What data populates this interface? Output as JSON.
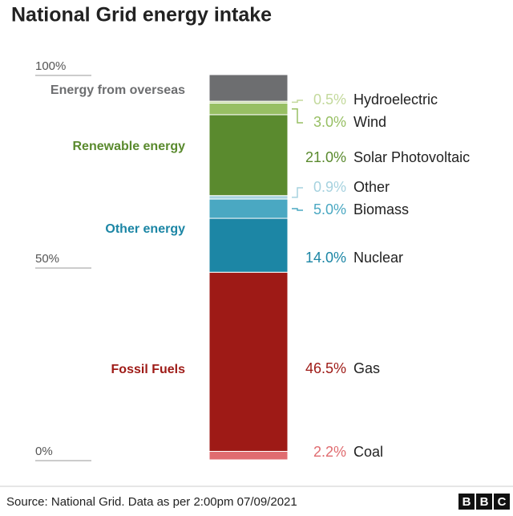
{
  "chart_data": {
    "type": "stacked-bar",
    "title": "National Grid energy intake",
    "source": "Source: National Grid. Data as per 2:00pm 07/09/2021",
    "logo": "BBC",
    "ylim": [
      0,
      100
    ],
    "yticks": [
      {
        "value": 0,
        "label": "0%"
      },
      {
        "value": 50,
        "label": "50%"
      },
      {
        "value": 100,
        "label": "100%"
      }
    ],
    "groups": [
      {
        "name": "Fossil Fuels",
        "color": "#9e1a16",
        "series": [
          {
            "name": "Coal",
            "color": "#e06c70",
            "values": [
              2.2
            ],
            "value_labels": [
              "2.2%"
            ]
          },
          {
            "name": "Gas",
            "color": "#9e1a16",
            "values": [
              46.5
            ],
            "value_labels": [
              "46.5%"
            ]
          }
        ]
      },
      {
        "name": "Other energy",
        "color": "#1c86a5",
        "series": [
          {
            "name": "Nuclear",
            "color": "#1c86a5",
            "values": [
              14.0
            ],
            "value_labels": [
              "14.0%"
            ]
          },
          {
            "name": "Biomass",
            "color": "#4aa8c2",
            "values": [
              5.0
            ],
            "value_labels": [
              "5.0%"
            ]
          },
          {
            "name": "Other",
            "color": "#a6d2df",
            "values": [
              0.9
            ],
            "value_labels": [
              "0.9%"
            ]
          }
        ]
      },
      {
        "name": "Renewable energy",
        "color": "#5a8a2e",
        "series": [
          {
            "name": "Solar Photovoltaic",
            "color": "#5a8a2e",
            "values": [
              21.0
            ],
            "value_labels": [
              "21.0%"
            ]
          },
          {
            "name": "Wind",
            "color": "#97bf63",
            "values": [
              3.0
            ],
            "value_labels": [
              "3.0%"
            ]
          },
          {
            "name": "Hydroelectric",
            "color": "#c3d99c",
            "values": [
              0.5
            ],
            "value_labels": [
              "0.5%"
            ]
          }
        ]
      },
      {
        "name": "Energy from overseas",
        "color": "#6d6e70",
        "series": [
          {
            "color": "#6d6e70",
            "values": [
              6.9
            ]
          }
        ]
      }
    ]
  }
}
